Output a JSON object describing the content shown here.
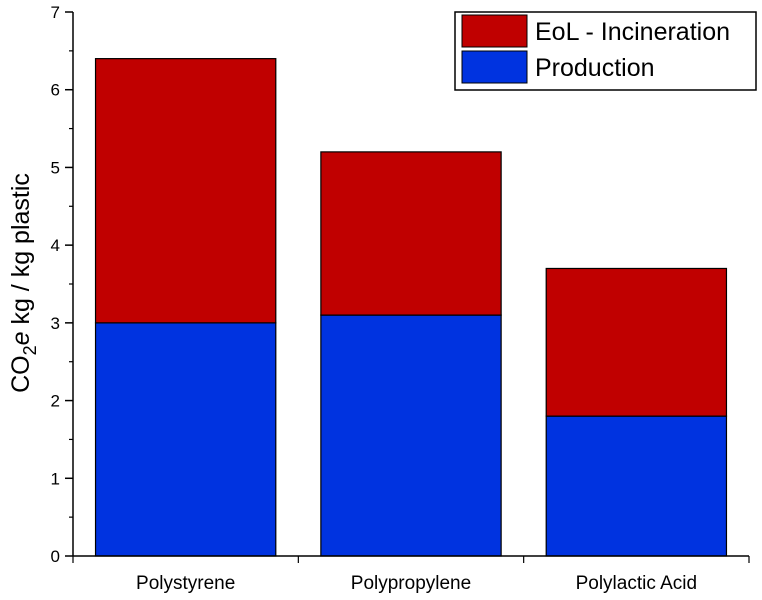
{
  "chart_data": {
    "type": "bar",
    "stacked": true,
    "categories": [
      "Polystyrene",
      "Polypropylene",
      "Polylactic Acid"
    ],
    "series": [
      {
        "name": "Production",
        "values": [
          3.0,
          3.1,
          1.8
        ],
        "color": "#0033e0"
      },
      {
        "name": "EoL - Incineration",
        "values": [
          3.4,
          2.1,
          1.9
        ],
        "color": "#c00000"
      }
    ],
    "ylabel": {
      "prefix": "CO",
      "subscript": "2",
      "italic": "e",
      "suffix": " kg / kg plastic"
    },
    "ylim": [
      0,
      7
    ],
    "yticks": [
      "0",
      "1",
      "2",
      "3",
      "4",
      "5",
      "6",
      "7"
    ],
    "legend": {
      "placement": "top-right",
      "order": [
        "EoL - Incineration",
        "Production"
      ]
    },
    "grid": false
  }
}
